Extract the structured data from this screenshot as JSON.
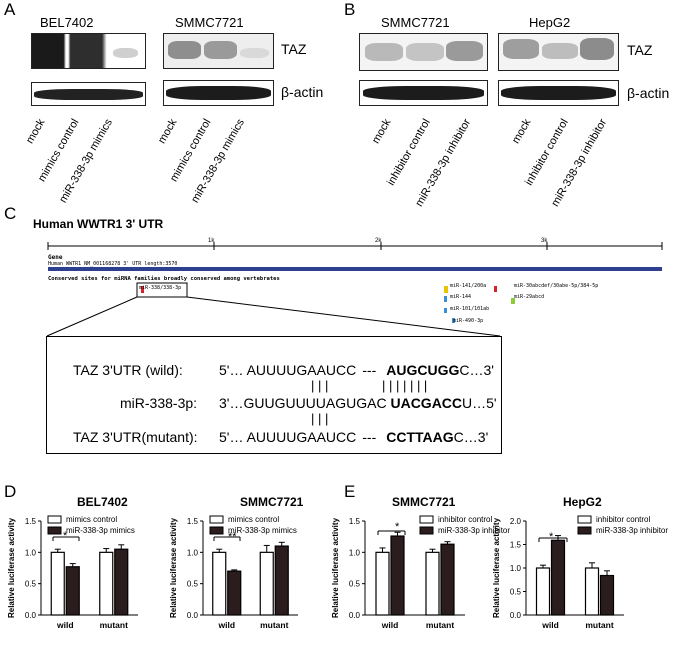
{
  "panelA": {
    "label": "A",
    "cells": [
      "BEL7402",
      "SMMC7721"
    ],
    "proteins": [
      "TAZ",
      "β-actin"
    ],
    "lanes": [
      "mock",
      "mimics control",
      "miR-338-3p mimics"
    ]
  },
  "panelB": {
    "label": "B",
    "cells": [
      "SMMC7721",
      "HepG2"
    ],
    "proteins": [
      "TAZ",
      "β-actin"
    ],
    "lanes": [
      "mock",
      "inhibitor control",
      "miR-338-3p inhibitor"
    ]
  },
  "panelC": {
    "label": "C",
    "title": "Human WWTR1  3' UTR",
    "ticks": [
      "1k",
      "2k",
      "3k"
    ],
    "gene_label": "Gene",
    "gene_desc": "Human WWTR1 NM_001168278 3' UTR length:3570",
    "conserved_label": "Conserved sites for miRNA families broadly conserved among vertebrates",
    "site_main": "miR-338/338-3p",
    "sites": [
      "miR-141/200a",
      "miR-30abcdef/30abe-5p/384-5p",
      "miR-144",
      "miR-29abcd",
      "miR-101/101ab",
      "miR-490-3p"
    ],
    "seq": {
      "wild_label": "TAZ 3'UTR (wild):",
      "wild_left": "5'… AUUUUGAAUCC",
      "wild_dash": "---",
      "wild_bold": "AUGCUGG",
      "wild_end": "C…3'",
      "mir_label": "miR-338-3p:",
      "mir_left": "3'…GUUGUUUUAGUGAC ",
      "mir_bold": "UACGACC",
      "mir_end": "U…5'",
      "mut_label": "TAZ 3'UTR(mutant):",
      "mut_left": "5'… AUUUUGAAUCC",
      "mut_dash": "---",
      "mut_bold": "CCTTAAG",
      "mut_end": "C…3'",
      "bars_short": "| | |",
      "bars_long": "| | | | | | |"
    }
  },
  "panelD": {
    "label": "D",
    "sig1": "*",
    "sig2": "**"
  },
  "panelE": {
    "label": "E",
    "sig1": "*",
    "sig2": "*"
  },
  "chart_data": [
    {
      "type": "bar",
      "title": "BEL7402",
      "categories": [
        "wild",
        "mutant"
      ],
      "ylabel": "Relative luciferase activity",
      "ylim": [
        0,
        1.5
      ],
      "yticks": [
        "0.0",
        "0.5",
        "1.0",
        "1.5"
      ],
      "series": [
        {
          "name": "mimics control",
          "values": [
            1.0,
            1.0
          ],
          "errors": [
            0.05,
            0.06
          ],
          "color": "#ffffff"
        },
        {
          "name": "miR-338-3p mimics",
          "values": [
            0.77,
            1.05
          ],
          "errors": [
            0.05,
            0.07
          ],
          "color": "#2b1d1d"
        }
      ]
    },
    {
      "type": "bar",
      "title": "SMMC7721",
      "categories": [
        "wild",
        "mutant"
      ],
      "ylabel": "Relative luciferase activity",
      "ylim": [
        0,
        1.5
      ],
      "yticks": [
        "0.0",
        "0.5",
        "1.0",
        "1.5"
      ],
      "series": [
        {
          "name": "mimics control",
          "values": [
            1.0,
            1.0
          ],
          "errors": [
            0.05,
            0.11
          ],
          "color": "#ffffff"
        },
        {
          "name": "miR-338-3p mimics",
          "values": [
            0.7,
            1.1
          ],
          "errors": [
            0.02,
            0.06
          ],
          "color": "#2b1d1d"
        }
      ]
    },
    {
      "type": "bar",
      "title": "SMMC7721",
      "categories": [
        "wild",
        "mutant"
      ],
      "ylabel": "Relative luciferase activity",
      "ylim": [
        0,
        1.5
      ],
      "yticks": [
        "0.0",
        "0.5",
        "1.0",
        "1.5"
      ],
      "series": [
        {
          "name": "inhibitor control",
          "values": [
            1.0,
            1.0
          ],
          "errors": [
            0.07,
            0.05
          ],
          "color": "#ffffff"
        },
        {
          "name": "miR-338-3p inhibitor",
          "values": [
            1.26,
            1.13
          ],
          "errors": [
            0.06,
            0.04
          ],
          "color": "#2b1d1d"
        }
      ]
    },
    {
      "type": "bar",
      "title": "HepG2",
      "categories": [
        "wild",
        "mutant"
      ],
      "ylabel": "Relative luciferase activity",
      "ylim": [
        0,
        2.0
      ],
      "yticks": [
        "0.0",
        "0.5",
        "1.0",
        "1.5",
        "2.0"
      ],
      "series": [
        {
          "name": "inhibitor control",
          "values": [
            1.0,
            1.0
          ],
          "errors": [
            0.06,
            0.11
          ],
          "color": "#ffffff"
        },
        {
          "name": "miR-338-3p inhibitor",
          "values": [
            1.59,
            0.84
          ],
          "errors": [
            0.1,
            0.1
          ],
          "color": "#2b1d1d"
        }
      ]
    }
  ]
}
